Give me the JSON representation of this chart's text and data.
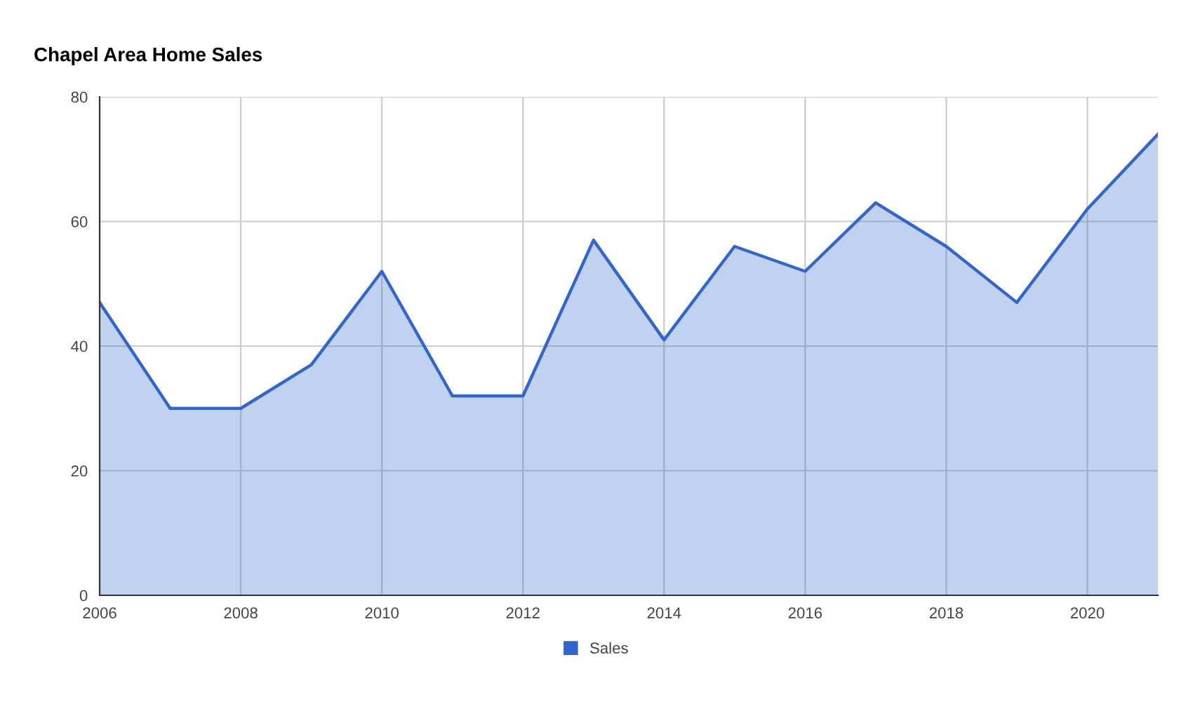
{
  "chart_data": {
    "type": "area",
    "title": "Chapel Area Home Sales",
    "x": [
      2006,
      2007,
      2008,
      2009,
      2010,
      2011,
      2012,
      2013,
      2014,
      2015,
      2016,
      2017,
      2018,
      2019,
      2020,
      2021
    ],
    "series": [
      {
        "name": "Sales",
        "color": "#3366cc",
        "values": [
          47,
          30,
          30,
          37,
          52,
          32,
          32,
          57,
          41,
          56,
          52,
          63,
          56,
          47,
          62,
          74
        ]
      }
    ],
    "xlim": [
      2006,
      2021
    ],
    "xticks": [
      2006,
      2008,
      2010,
      2012,
      2014,
      2016,
      2018,
      2020
    ],
    "ylim": [
      0,
      80
    ],
    "yticks": [
      0,
      20,
      40,
      60,
      80
    ],
    "grid": true,
    "legend": "bottom",
    "marker": "none",
    "line_style": "solid"
  }
}
